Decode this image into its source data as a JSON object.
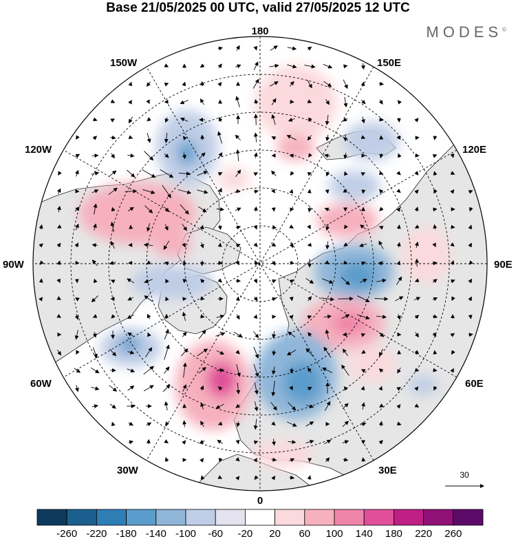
{
  "header": {
    "title": "Base 21/05/2025 00 UTC, valid 27/05/2025 12 UTC",
    "brand": "MODES",
    "brand_mark": "©"
  },
  "map": {
    "projection": "north polar stereographic",
    "longitude_labels": {
      "top": "180",
      "bottom": "0",
      "left": "90W",
      "right": "90E",
      "ul1": "150W",
      "ul2": "120W",
      "ur1": "150E",
      "ur2": "120E",
      "ll1": "60W",
      "ll2": "30W",
      "lr1": "60E",
      "lr2": "30E"
    },
    "reference_vector": "30",
    "colors": {
      "land": "#e6e6e6",
      "ocean": "#ffffff",
      "coast": "#222222",
      "grid": "#000000",
      "arrow": "#000000"
    }
  },
  "colorbar": {
    "ticks": [
      "-260",
      "-220",
      "-180",
      "-140",
      "-100",
      "-60",
      "-20",
      "20",
      "60",
      "100",
      "140",
      "180",
      "220",
      "260"
    ],
    "colors": [
      "#0d3a5c",
      "#1b5f8e",
      "#2f7fb6",
      "#5a9ccb",
      "#8fb6d9",
      "#bfcde6",
      "#e4e2ef",
      "#ffffff",
      "#fbd9dc",
      "#f6b0be",
      "#ef84a9",
      "#e04f9a",
      "#be1f85",
      "#8f1077",
      "#5c0b6b"
    ]
  }
}
